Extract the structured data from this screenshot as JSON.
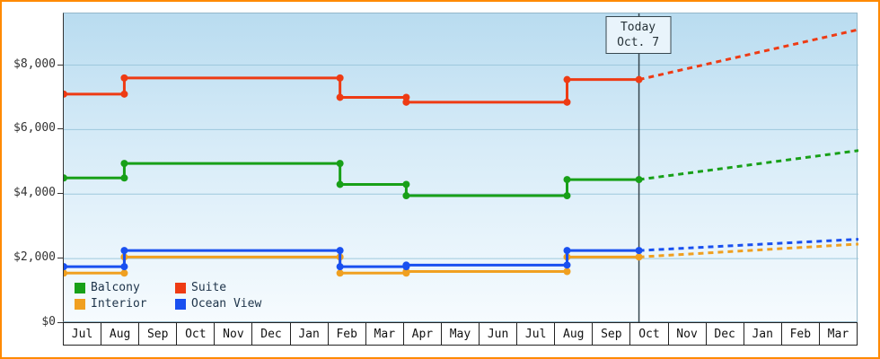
{
  "frame": {
    "border_color": "#ff8a00"
  },
  "chart_data": {
    "type": "line",
    "subtype": "step-with-forecast",
    "title": "",
    "months": [
      "Jul",
      "Aug",
      "Sep",
      "Oct",
      "Nov",
      "Dec",
      "Jan",
      "Feb",
      "Mar",
      "Apr",
      "May",
      "Jun",
      "Jul",
      "Aug",
      "Sep",
      "Oct",
      "Nov",
      "Dec",
      "Jan",
      "Feb",
      "Mar"
    ],
    "y_ticks": [
      0,
      2000,
      4000,
      6000,
      8000
    ],
    "y_tick_labels": [
      "$0",
      "$2,000",
      "$4,000",
      "$6,000",
      "$8,000"
    ],
    "ylim": [
      0,
      9600
    ],
    "grid": "horizontal",
    "legend_position": "bottom-left-inside",
    "today": {
      "line1": "Today",
      "line2": "Oct. 7",
      "month_position": 15.2
    },
    "series": [
      {
        "name": "Balcony",
        "color": "#18a018",
        "steps": [
          [
            0,
            4500
          ],
          [
            1.6,
            4950
          ],
          [
            7.3,
            4300
          ],
          [
            9.05,
            3950
          ],
          [
            13.3,
            4450
          ]
        ],
        "forecast_end_value": 5350
      },
      {
        "name": "Suite",
        "color": "#ee3b14",
        "steps": [
          [
            0,
            7100
          ],
          [
            1.6,
            7600
          ],
          [
            7.3,
            7000
          ],
          [
            9.05,
            6850
          ],
          [
            13.3,
            7550
          ]
        ],
        "forecast_end_value": 9100
      },
      {
        "name": "Interior",
        "color": "#f0a020",
        "steps": [
          [
            0,
            1550
          ],
          [
            1.6,
            2050
          ],
          [
            7.3,
            1550
          ],
          [
            9.05,
            1600
          ],
          [
            13.3,
            2050
          ]
        ],
        "forecast_end_value": 2450
      },
      {
        "name": "Ocean View",
        "color": "#1950f0",
        "steps": [
          [
            0,
            1750
          ],
          [
            1.6,
            2250
          ],
          [
            7.3,
            1750
          ],
          [
            9.05,
            1800
          ],
          [
            13.3,
            2250
          ]
        ],
        "forecast_end_value": 2600
      }
    ],
    "legend_rows": [
      [
        "Balcony",
        "Suite"
      ],
      [
        "Interior",
        "Ocean View"
      ]
    ]
  }
}
